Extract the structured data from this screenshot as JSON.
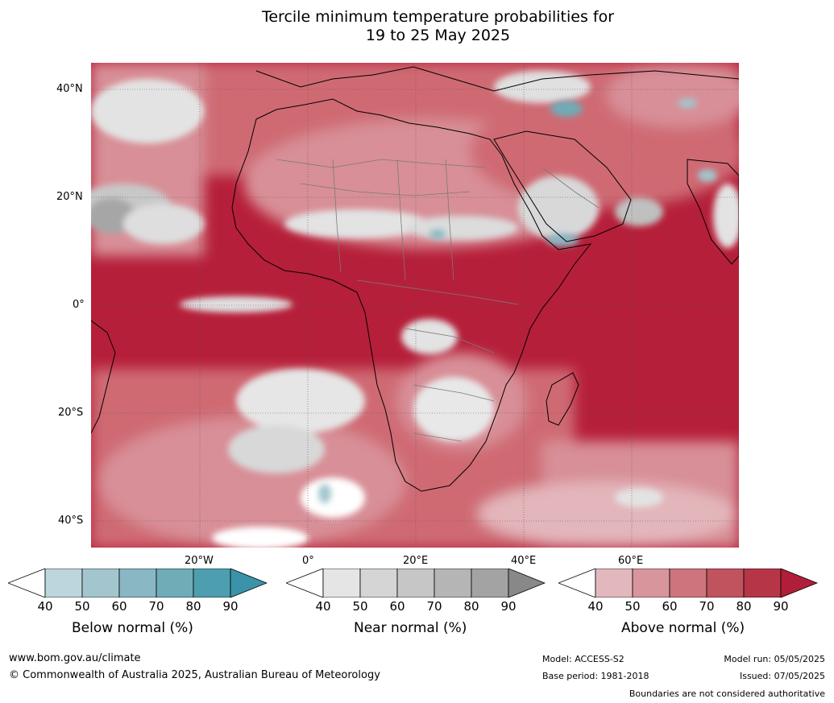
{
  "title": {
    "line1": "Tercile minimum temperature probabilities for",
    "line2": "19 to 25 May 2025"
  },
  "map": {
    "lat_labels": [
      "40°N",
      "20°N",
      "0°",
      "20°S",
      "40°S"
    ],
    "lon_labels": [
      "20°W",
      "0°",
      "20°E",
      "40°E",
      "60°E"
    ],
    "colors": {
      "ocean_dominant": "#b61f39",
      "above_80": "#c3394b",
      "above_70": "#cf6a73",
      "above_60": "#d88f97",
      "above_50": "#e3b6bb",
      "near_gray": "#d8d8d8",
      "below_teal": "#5fa9b9",
      "coast": "#000000",
      "border": "#808080"
    }
  },
  "colorbars": [
    {
      "name": "below",
      "label": "Below normal (%)",
      "ticks": [
        "40",
        "50",
        "60",
        "70",
        "80",
        "90"
      ],
      "colors": [
        "#bdd5dc",
        "#a3c6ce",
        "#89b7c3",
        "#6eacb8",
        "#4d9fb0"
      ],
      "over_color": "#3a93a8"
    },
    {
      "name": "near",
      "label": "Near normal (%)",
      "ticks": [
        "40",
        "50",
        "60",
        "70",
        "80",
        "90"
      ],
      "colors": [
        "#e5e5e5",
        "#d5d5d5",
        "#c6c6c6",
        "#b5b5b5",
        "#a3a3a3"
      ],
      "over_color": "#888888"
    },
    {
      "name": "above",
      "label": "Above normal (%)",
      "ticks": [
        "40",
        "50",
        "60",
        "70",
        "80",
        "90"
      ],
      "colors": [
        "#e3b8bd",
        "#d9959c",
        "#cd747c",
        "#c1535f",
        "#b63647"
      ],
      "over_color": "#b01e38"
    }
  ],
  "footer": {
    "website": "www.bom.gov.au/climate",
    "copyright": "© Commonwealth of Australia 2025, Australian Bureau of Meteorology",
    "model": "Model: ACCESS-S2",
    "base_period": "Base period: 1981-2018",
    "model_run": "Model run: 05/05/2025",
    "issued": "Issued: 07/05/2025",
    "disclaimer": "Boundaries are not considered authoritative"
  }
}
